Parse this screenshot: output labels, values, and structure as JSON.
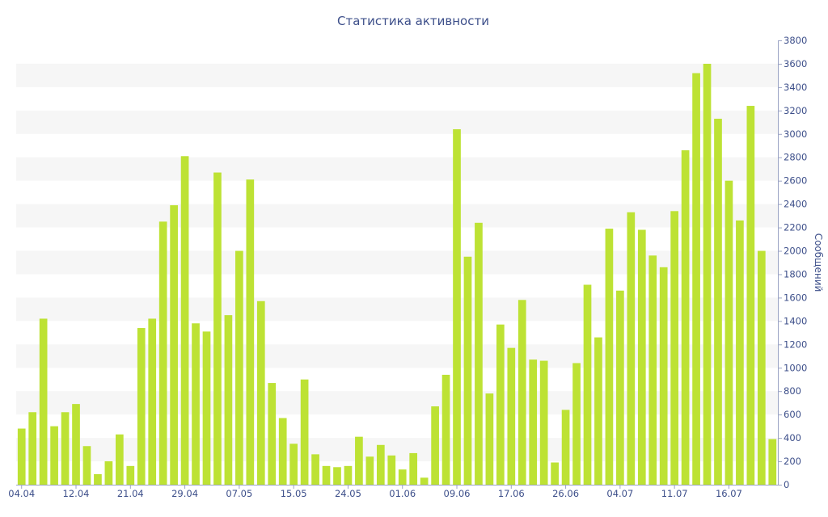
{
  "chart_data": {
    "type": "bar",
    "title": "Статистика активности",
    "ylabel": "Сообщений",
    "xlabel": "",
    "ylim": [
      0,
      3800
    ],
    "y_ticks": [
      0,
      200,
      400,
      600,
      800,
      1000,
      1200,
      1400,
      1600,
      1800,
      2000,
      2200,
      2400,
      2600,
      2800,
      3000,
      3200,
      3400,
      3600,
      3800
    ],
    "y_axis_position": "right",
    "grid": "alternating horizontal bands",
    "bar_color": "#bde234",
    "x_tick_labels": [
      {
        "index": 0,
        "label": "04.04"
      },
      {
        "index": 5,
        "label": "12.04"
      },
      {
        "index": 10,
        "label": "21.04"
      },
      {
        "index": 15,
        "label": "29.04"
      },
      {
        "index": 20,
        "label": "07.05"
      },
      {
        "index": 25,
        "label": "15.05"
      },
      {
        "index": 30,
        "label": "24.05"
      },
      {
        "index": 35,
        "label": "01.06"
      },
      {
        "index": 40,
        "label": "09.06"
      },
      {
        "index": 45,
        "label": "17.06"
      },
      {
        "index": 50,
        "label": "26.06"
      },
      {
        "index": 55,
        "label": "04.07"
      },
      {
        "index": 60,
        "label": "11.07"
      },
      {
        "index": 65,
        "label": "16.07"
      }
    ],
    "values": [
      480,
      620,
      1420,
      500,
      620,
      690,
      330,
      90,
      200,
      430,
      160,
      1340,
      1420,
      2250,
      2390,
      2810,
      1380,
      1310,
      2670,
      1450,
      2000,
      2610,
      1570,
      870,
      570,
      350,
      900,
      260,
      160,
      150,
      160,
      410,
      240,
      340,
      250,
      130,
      270,
      60,
      670,
      940,
      3040,
      1950,
      2240,
      780,
      1370,
      1170,
      1580,
      1070,
      1060,
      190,
      640,
      1040,
      1710,
      1260,
      2190,
      1660,
      2330,
      2180,
      1960,
      1860,
      2340,
      2860,
      3520,
      3600,
      3130,
      2600,
      2260,
      3240,
      2000,
      390
    ]
  }
}
